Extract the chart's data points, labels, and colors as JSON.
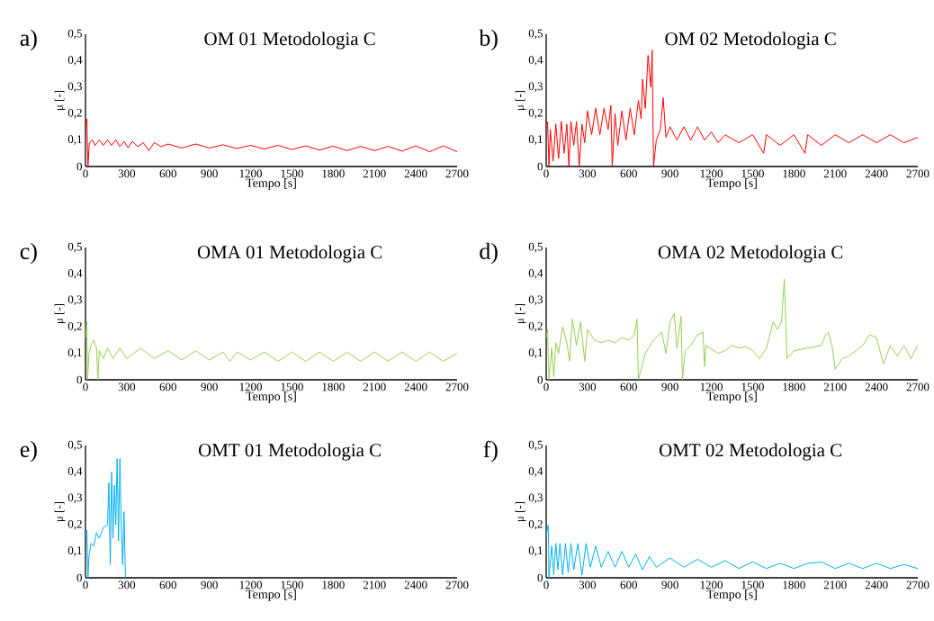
{
  "chart_data": [
    {
      "type": "line",
      "title": "OM 01 Metodologia C",
      "xlabel": "Tempo [s]",
      "ylabel": "μ [-]",
      "annotations": [
        "a)"
      ],
      "line_style": "solid",
      "xlim": [
        0,
        2700
      ],
      "xticks": [
        0,
        300,
        600,
        900,
        1200,
        1500,
        1800,
        2100,
        2400,
        2700
      ],
      "ylim": [
        0,
        0.5
      ],
      "yticks": [
        {
          "value": 0,
          "label": "0"
        },
        {
          "value": 0.1,
          "label": "0,1"
        },
        {
          "value": 0.2,
          "label": "0,2"
        },
        {
          "value": 0.3,
          "label": "0,3"
        },
        {
          "value": 0.4,
          "label": "0,4"
        },
        {
          "value": 0.5,
          "label": "0,5"
        }
      ],
      "x": [
        0,
        10,
        18,
        28,
        50,
        70,
        100,
        130,
        160,
        190,
        220,
        250,
        280,
        310,
        340,
        380,
        420,
        460,
        500,
        550,
        600,
        700,
        800,
        900,
        1000,
        1100,
        1200,
        1300,
        1400,
        1500,
        1600,
        1700,
        1800,
        1900,
        2000,
        2100,
        2200,
        2300,
        2400,
        2500,
        2600,
        2700
      ],
      "series": [
        {
          "color": "#ff0000",
          "values": [
            0.16,
            0.18,
            0.0,
            0.09,
            0.1,
            0.08,
            0.1,
            0.08,
            0.1,
            0.08,
            0.1,
            0.075,
            0.095,
            0.07,
            0.095,
            0.075,
            0.09,
            0.06,
            0.09,
            0.075,
            0.085,
            0.07,
            0.085,
            0.07,
            0.082,
            0.068,
            0.08,
            0.066,
            0.08,
            0.064,
            0.078,
            0.062,
            0.077,
            0.06,
            0.076,
            0.06,
            0.076,
            0.058,
            0.078,
            0.056,
            0.078,
            0.056
          ]
        }
      ]
    },
    {
      "type": "line",
      "title": "OM 02 Metodologia C",
      "xlabel": "Tempo [s]",
      "ylabel": "μ [-]",
      "annotations": [
        "b)"
      ],
      "line_style": "solid",
      "xlim": [
        0,
        2700
      ],
      "xticks": [
        0,
        300,
        600,
        900,
        1200,
        1500,
        1800,
        2100,
        2400,
        2700
      ],
      "ylim": [
        0,
        0.5
      ],
      "yticks": [
        {
          "value": 0,
          "label": "0"
        },
        {
          "value": 0.1,
          "label": "0,1"
        },
        {
          "value": 0.2,
          "label": "0,2"
        },
        {
          "value": 0.3,
          "label": "0,3"
        },
        {
          "value": 0.4,
          "label": "0,4"
        },
        {
          "value": 0.5,
          "label": "0,5"
        }
      ],
      "x": [
        0,
        10,
        20,
        30,
        50,
        70,
        90,
        110,
        130,
        150,
        165,
        180,
        200,
        220,
        240,
        260,
        280,
        300,
        330,
        360,
        390,
        420,
        450,
        470,
        480,
        500,
        520,
        550,
        580,
        610,
        640,
        670,
        690,
        700,
        720,
        740,
        760,
        770,
        780,
        800,
        830,
        850,
        870,
        900,
        950,
        1000,
        1050,
        1100,
        1150,
        1200,
        1250,
        1300,
        1400,
        1500,
        1580,
        1600,
        1700,
        1800,
        1880,
        1900,
        2000,
        2100,
        2200,
        2300,
        2400,
        2500,
        2600,
        2700
      ],
      "series": [
        {
          "color": "#ff0000",
          "values": [
            0.16,
            0.17,
            0.0,
            0.14,
            0.02,
            0.16,
            0.03,
            0.17,
            0.05,
            0.16,
            0.0,
            0.17,
            0.08,
            0.17,
            0.0,
            0.16,
            0.09,
            0.21,
            0.12,
            0.22,
            0.12,
            0.22,
            0.14,
            0.23,
            0.0,
            0.2,
            0.08,
            0.21,
            0.1,
            0.22,
            0.12,
            0.25,
            0.18,
            0.33,
            0.22,
            0.42,
            0.3,
            0.44,
            0.0,
            0.1,
            0.14,
            0.26,
            0.11,
            0.15,
            0.1,
            0.15,
            0.1,
            0.15,
            0.1,
            0.13,
            0.09,
            0.12,
            0.09,
            0.12,
            0.05,
            0.12,
            0.08,
            0.12,
            0.05,
            0.12,
            0.08,
            0.12,
            0.09,
            0.12,
            0.09,
            0.12,
            0.09,
            0.11
          ]
        }
      ]
    },
    {
      "type": "line",
      "title": "OMA 01 Metodologia C",
      "xlabel": "Tempo [s]",
      "ylabel": "μ [-]",
      "annotations": [
        "c)"
      ],
      "line_style": "solid",
      "xlim": [
        0,
        2700
      ],
      "xticks": [
        0,
        300,
        600,
        900,
        1200,
        1500,
        1800,
        2100,
        2400,
        2700
      ],
      "ylim": [
        0,
        0.5
      ],
      "yticks": [
        {
          "value": 0,
          "label": "0"
        },
        {
          "value": 0.1,
          "label": "0,1"
        },
        {
          "value": 0.2,
          "label": "0,2"
        },
        {
          "value": 0.3,
          "label": "0,3"
        },
        {
          "value": 0.4,
          "label": "0,4"
        },
        {
          "value": 0.5,
          "label": "0,5"
        }
      ],
      "x": [
        0,
        10,
        15,
        25,
        40,
        60,
        80,
        90,
        100,
        130,
        160,
        200,
        250,
        300,
        400,
        500,
        600,
        700,
        800,
        900,
        1000,
        1050,
        1100,
        1200,
        1300,
        1400,
        1500,
        1600,
        1700,
        1800,
        1900,
        2000,
        2100,
        2200,
        2300,
        2400,
        2500,
        2600,
        2700
      ],
      "series": [
        {
          "color": "#92d050",
          "values": [
            0.16,
            0.22,
            0.0,
            0.1,
            0.13,
            0.15,
            0.12,
            0.0,
            0.11,
            0.08,
            0.12,
            0.08,
            0.12,
            0.08,
            0.12,
            0.08,
            0.11,
            0.075,
            0.11,
            0.075,
            0.105,
            0.07,
            0.105,
            0.075,
            0.105,
            0.07,
            0.105,
            0.07,
            0.105,
            0.07,
            0.105,
            0.07,
            0.105,
            0.07,
            0.105,
            0.07,
            0.105,
            0.07,
            0.1
          ]
        }
      ]
    },
    {
      "type": "line",
      "title": "OMA 02 Metodologia C",
      "xlabel": "Tempo [s]",
      "ylabel": "μ [-]",
      "annotations": [
        "d)"
      ],
      "line_style": "solid",
      "xlim": [
        0,
        2700
      ],
      "xticks": [
        0,
        300,
        600,
        900,
        1200,
        1500,
        1800,
        2100,
        2400,
        2700
      ],
      "ylim": [
        0,
        0.5
      ],
      "yticks": [
        {
          "value": 0,
          "label": "0"
        },
        {
          "value": 0.1,
          "label": "0,1"
        },
        {
          "value": 0.2,
          "label": "0,2"
        },
        {
          "value": 0.3,
          "label": "0,3"
        },
        {
          "value": 0.4,
          "label": "0,4"
        },
        {
          "value": 0.5,
          "label": "0,5"
        }
      ],
      "x": [
        0,
        10,
        20,
        40,
        55,
        70,
        90,
        120,
        150,
        170,
        190,
        220,
        250,
        280,
        300,
        350,
        400,
        450,
        500,
        550,
        600,
        640,
        660,
        670,
        720,
        780,
        840,
        870,
        900,
        930,
        950,
        980,
        990,
        1010,
        1050,
        1100,
        1140,
        1150,
        1160,
        1250,
        1300,
        1350,
        1400,
        1450,
        1500,
        1550,
        1600,
        1650,
        1680,
        1710,
        1730,
        1750,
        1800,
        1900,
        2000,
        2030,
        2050,
        2080,
        2100,
        2150,
        2200,
        2300,
        2350,
        2400,
        2450,
        2500,
        2550,
        2600,
        2650,
        2700
      ],
      "series": [
        {
          "color": "#92d050",
          "values": [
            0.16,
            0.19,
            0.0,
            0.12,
            0.01,
            0.14,
            0.1,
            0.2,
            0.14,
            0.07,
            0.23,
            0.13,
            0.22,
            0.07,
            0.19,
            0.15,
            0.14,
            0.15,
            0.14,
            0.16,
            0.15,
            0.17,
            0.23,
            0.0,
            0.1,
            0.15,
            0.18,
            0.1,
            0.22,
            0.25,
            0.12,
            0.24,
            0.0,
            0.11,
            0.13,
            0.17,
            0.18,
            0.05,
            0.13,
            0.1,
            0.11,
            0.13,
            0.12,
            0.125,
            0.11,
            0.08,
            0.12,
            0.22,
            0.19,
            0.22,
            0.38,
            0.08,
            0.11,
            0.12,
            0.13,
            0.17,
            0.18,
            0.12,
            0.04,
            0.08,
            0.09,
            0.13,
            0.17,
            0.16,
            0.06,
            0.13,
            0.09,
            0.13,
            0.08,
            0.13
          ]
        }
      ]
    },
    {
      "type": "line",
      "title": "OMT 01 Metodologia C",
      "xlabel": "Tempo [s]",
      "ylabel": "μ [-]",
      "annotations": [
        "e)"
      ],
      "line_style": "solid",
      "xlim": [
        0,
        2700
      ],
      "xticks": [
        0,
        300,
        600,
        900,
        1200,
        1500,
        1800,
        2100,
        2400,
        2700
      ],
      "ylim": [
        0,
        0.5
      ],
      "yticks": [
        {
          "value": 0,
          "label": "0"
        },
        {
          "value": 0.1,
          "label": "0,1"
        },
        {
          "value": 0.2,
          "label": "0,2"
        },
        {
          "value": 0.3,
          "label": "0,3"
        },
        {
          "value": 0.4,
          "label": "0,4"
        },
        {
          "value": 0.5,
          "label": "0,5"
        }
      ],
      "x": [
        0,
        10,
        18,
        25,
        40,
        60,
        80,
        100,
        130,
        160,
        170,
        180,
        190,
        200,
        210,
        220,
        230,
        240,
        250,
        260,
        270,
        280,
        290
      ],
      "series": [
        {
          "color": "#00b0f0",
          "values": [
            0.16,
            0.18,
            0.0,
            0.08,
            0.13,
            0.12,
            0.17,
            0.15,
            0.19,
            0.2,
            0.36,
            0.05,
            0.4,
            0.15,
            0.35,
            0.2,
            0.45,
            0.14,
            0.45,
            0.2,
            0.05,
            0.25,
            0.0
          ]
        }
      ]
    },
    {
      "type": "line",
      "title": "OMT 02 Metodologia C",
      "xlabel": "Tempo [s]",
      "ylabel": "μ [-]",
      "annotations": [
        "f)"
      ],
      "line_style": "solid",
      "xlim": [
        0,
        2700
      ],
      "xticks": [
        0,
        300,
        600,
        900,
        1200,
        1500,
        1800,
        2100,
        2400,
        2700
      ],
      "ylim": [
        0,
        0.5
      ],
      "yticks": [
        {
          "value": 0,
          "label": "0"
        },
        {
          "value": 0.1,
          "label": "0,1"
        },
        {
          "value": 0.2,
          "label": "0,2"
        },
        {
          "value": 0.3,
          "label": "0,3"
        },
        {
          "value": 0.4,
          "label": "0,4"
        },
        {
          "value": 0.5,
          "label": "0,5"
        }
      ],
      "x": [
        0,
        15,
        20,
        40,
        55,
        70,
        85,
        100,
        120,
        140,
        160,
        180,
        200,
        230,
        260,
        290,
        320,
        360,
        400,
        450,
        500,
        550,
        600,
        650,
        700,
        750,
        800,
        900,
        1000,
        1100,
        1200,
        1300,
        1400,
        1500,
        1600,
        1700,
        1800,
        1900,
        2000,
        2100,
        2200,
        2300,
        2400,
        2500,
        2600,
        2700
      ],
      "series": [
        {
          "color": "#00b0f0",
          "values": [
            0.16,
            0.2,
            0.0,
            0.12,
            0.01,
            0.13,
            0.03,
            0.13,
            0.01,
            0.13,
            0.02,
            0.13,
            0.03,
            0.13,
            0.01,
            0.13,
            0.04,
            0.12,
            0.04,
            0.1,
            0.04,
            0.1,
            0.04,
            0.09,
            0.03,
            0.08,
            0.04,
            0.075,
            0.04,
            0.07,
            0.04,
            0.065,
            0.035,
            0.06,
            0.035,
            0.055,
            0.035,
            0.055,
            0.06,
            0.035,
            0.055,
            0.035,
            0.055,
            0.035,
            0.05,
            0.035
          ]
        }
      ]
    }
  ]
}
